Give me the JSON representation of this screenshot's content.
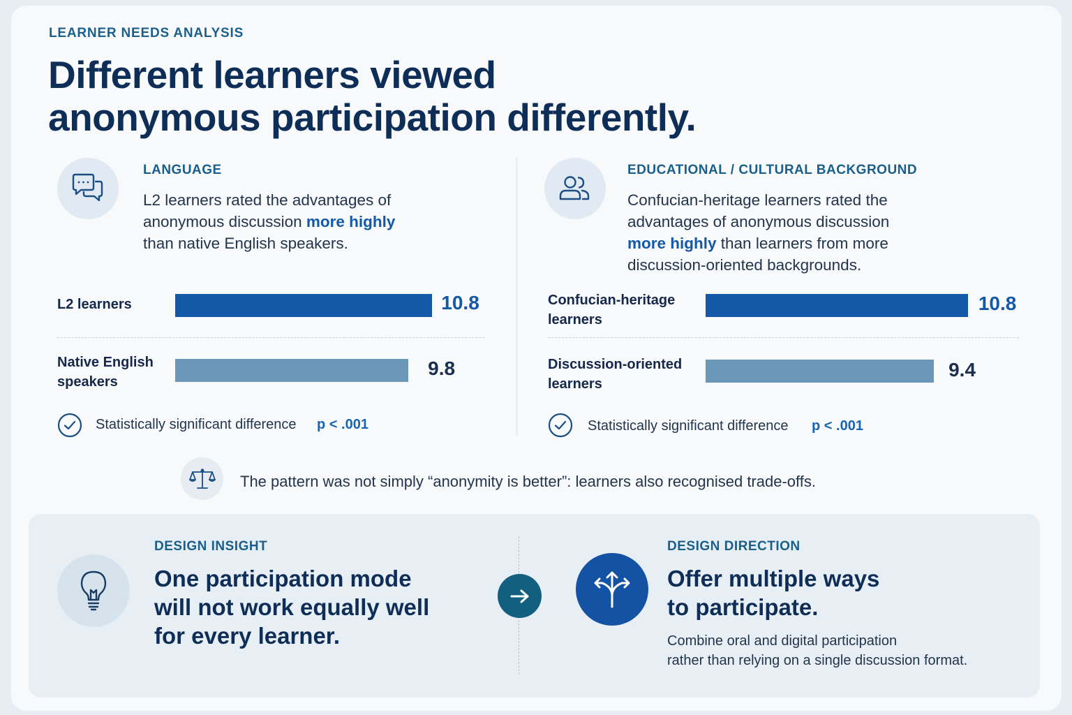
{
  "header": {
    "eyebrow": "LEARNER NEEDS ANALYSIS",
    "title_line1": "Different learners viewed",
    "title_line2": "anonymous participation differently."
  },
  "language": {
    "label": "LANGUAGE",
    "line1": "L2 learners rated the advantages of",
    "line2_before": "anonymous discussion ",
    "line2_highlight": "more highly",
    "line3": "than native English speakers.",
    "sig_text": "Statistically significant difference",
    "p_value": "p < .001"
  },
  "background": {
    "label": "EDUCATIONAL / CULTURAL BACKGROUND",
    "line1": "Confucian-heritage learners rated the",
    "line2": "advantages of anonymous discussion",
    "line3_highlight": "more highly",
    "line3_after": " than learners from more",
    "line4": "discussion-oriented backgrounds.",
    "sig_text": "Statistically significant difference",
    "p_value": "p < .001"
  },
  "chart_data": [
    {
      "type": "bar",
      "orientation": "horizontal",
      "categories": [
        "L2 learners",
        "Native English speakers"
      ],
      "category_lines": [
        [
          "L2 learners"
        ],
        [
          "Native English",
          "speakers"
        ]
      ],
      "values": [
        10.8,
        9.8
      ],
      "value_labels": [
        "10.8",
        "9.8"
      ],
      "colors": [
        "#1459a8",
        "#6a97b8"
      ]
    },
    {
      "type": "bar",
      "orientation": "horizontal",
      "categories": [
        "Confucian-heritage learners",
        "Discussion-oriented learners"
      ],
      "category_lines": [
        [
          "Confucian-heritage",
          "learners"
        ],
        [
          "Discussion-oriented",
          "learners"
        ]
      ],
      "values": [
        10.8,
        9.4
      ],
      "value_labels": [
        "10.8",
        "9.4"
      ],
      "colors": [
        "#1459a8",
        "#6a97b8"
      ]
    }
  ],
  "note": {
    "text": "The pattern was not simply “anonymity is better”: learners also recognised trade-offs."
  },
  "insight": {
    "label": "DESIGN INSIGHT",
    "line1": "One participation mode",
    "line2": "will not work equally well",
    "line3": "for every learner."
  },
  "direction": {
    "label": "DESIGN DIRECTION",
    "title1": "Offer multiple ways",
    "title2": "to participate.",
    "desc1": "Combine oral and digital participation",
    "desc2": "rather than relying on a single discussion format."
  },
  "icons": {
    "language": "chat-bubbles-icon",
    "background": "people-icon",
    "check": "check-circle-icon",
    "note": "balance-scale-icon",
    "insight": "lightbulb-icon",
    "arrow": "arrow-right-icon",
    "direction": "branching-arrows-icon"
  },
  "colors": {
    "primary_bar": "#1459a8",
    "secondary_bar": "#6a97b8",
    "heading": "#0f2e57",
    "accent_label": "#1c5f8c",
    "arrow_circle": "#135f80"
  }
}
